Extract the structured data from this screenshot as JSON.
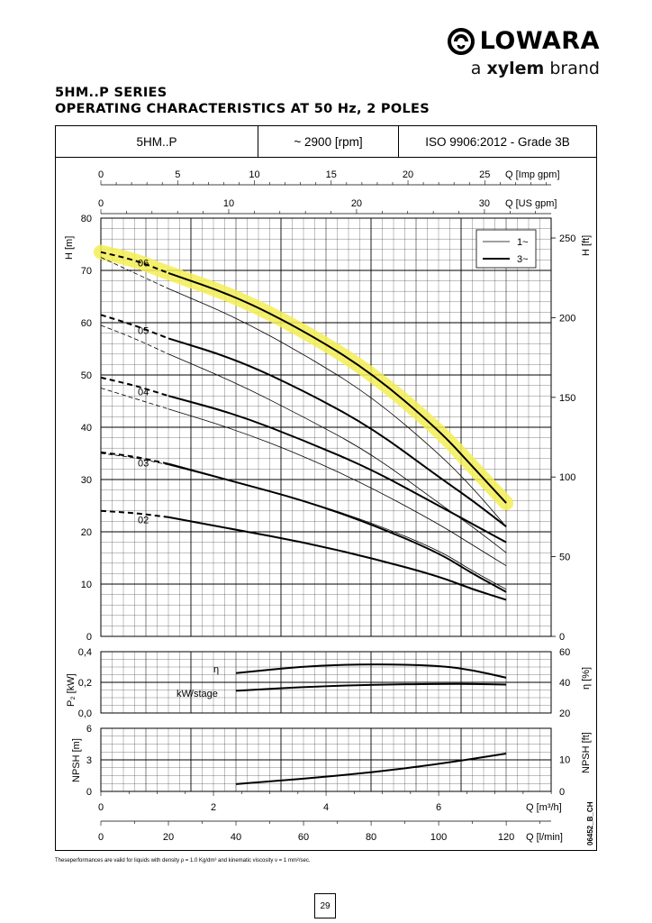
{
  "brand": {
    "name": "LOWARA",
    "tag_prefix": "a ",
    "tag_bold": "xylem",
    "tag_suffix": " brand",
    "logo_icon": "lowara-spiral-icon"
  },
  "title": {
    "line1": "5HM..P SERIES",
    "line2": "OPERATING CHARACTERISTICS AT 50 Hz, 2 POLES"
  },
  "header": {
    "model": "5HM..P",
    "speed": "~ 2900 [rpm]",
    "standard": "ISO 9906:2012 - Grade 3B"
  },
  "footnote": "Theseperformances are valid for liquids with  density ρ =  1.0 Kg/dm³  and kinematic viscosity ν =  1 mm²/sec.",
  "page_number": "29",
  "drawing_code": "06452_B_CH",
  "colors": {
    "highlight": "#f3ef55",
    "line": "#000000"
  },
  "chart_data": {
    "type": "line",
    "x_axes": [
      {
        "label": "Q [Imp gpm]",
        "ticks": [
          0,
          5,
          10,
          15,
          20,
          25
        ],
        "range": [
          0,
          29.3
        ],
        "position": "top"
      },
      {
        "label": "Q [US gpm]",
        "ticks": [
          0,
          10,
          20,
          30
        ],
        "range": [
          0,
          35.2
        ],
        "position": "top"
      },
      {
        "label": "Q [m³/h]",
        "ticks": [
          0,
          2,
          4,
          6
        ],
        "range": [
          0,
          8
        ],
        "position": "bottom"
      },
      {
        "label": "Q [l/min]",
        "ticks": [
          0,
          20,
          40,
          60,
          80,
          100,
          120
        ],
        "range": [
          0,
          133.3
        ],
        "position": "bottom"
      }
    ],
    "x_data_unit": "l/min",
    "head": {
      "ylabel": "H [m]",
      "ylim": [
        0,
        80
      ],
      "yticks": [
        0,
        10,
        20,
        30,
        40,
        50,
        60,
        70,
        80
      ],
      "ylabel_right": "H [ft]",
      "yticks_right": [
        0,
        50,
        100,
        150,
        200,
        250
      ],
      "legend": [
        {
          "name": "1~",
          "style": "thin"
        },
        {
          "name": "3~",
          "style": "thick"
        }
      ],
      "legend_position": "top-right",
      "highlight_curve": "06",
      "curves": [
        {
          "label": "06",
          "style": "thick",
          "x": [
            0,
            10,
            20,
            40,
            60,
            80,
            100,
            110,
            120
          ],
          "y": [
            73.5,
            72,
            69.5,
            65,
            58.5,
            50.5,
            39.5,
            32.5,
            25.5
          ]
        },
        {
          "label": "06",
          "style": "thin",
          "x": [
            0,
            10,
            20,
            40,
            60,
            80,
            100,
            110,
            120
          ],
          "y": [
            72.5,
            69.5,
            66.5,
            61,
            54,
            46,
            35,
            28.5,
            21
          ]
        },
        {
          "label": "05",
          "style": "thick",
          "x": [
            0,
            10,
            20,
            40,
            60,
            80,
            100,
            110,
            120
          ],
          "y": [
            61.5,
            59.5,
            57,
            53,
            47,
            40,
            30.5,
            26,
            21
          ]
        },
        {
          "label": "05",
          "style": "thin",
          "x": [
            0,
            10,
            20,
            40,
            60,
            80,
            100,
            110,
            120
          ],
          "y": [
            59.5,
            57,
            54,
            48.5,
            42,
            35,
            25.5,
            21,
            16
          ]
        },
        {
          "label": "04",
          "style": "thick",
          "x": [
            0,
            10,
            20,
            40,
            60,
            80,
            100,
            110,
            120
          ],
          "y": [
            49.5,
            48,
            46,
            42.5,
            37.5,
            32,
            25,
            21.5,
            18
          ]
        },
        {
          "label": "04",
          "style": "thin",
          "x": [
            0,
            10,
            20,
            40,
            60,
            80,
            100,
            110,
            120
          ],
          "y": [
            47.5,
            45.5,
            43.5,
            39.5,
            34.5,
            28.5,
            21.5,
            17.5,
            13.5
          ]
        },
        {
          "label": "03",
          "style": "thick",
          "x": [
            0,
            10,
            20,
            40,
            60,
            80,
            100,
            110,
            120
          ],
          "y": [
            35.2,
            34.4,
            33,
            29.5,
            26,
            21.5,
            16,
            12,
            8.5
          ]
        },
        {
          "label": "03",
          "style": "thin",
          "x": [
            0,
            10,
            20,
            40,
            60,
            80,
            100,
            110,
            120
          ],
          "y": [
            35,
            34.2,
            32.8,
            29.5,
            26,
            21.8,
            16.5,
            12.5,
            9
          ]
        },
        {
          "label": "02",
          "style": "thick",
          "x": [
            0,
            10,
            20,
            40,
            60,
            80,
            100,
            110,
            120
          ],
          "y": [
            24,
            23.6,
            22.8,
            20.4,
            18,
            15,
            11.5,
            9,
            7
          ]
        }
      ]
    },
    "power": {
      "ylabel": "P₂ [kW]",
      "ylim": [
        0,
        0.4
      ],
      "yticks": [
        "0,0",
        "0,2",
        "0,4"
      ],
      "ylabel_right": "η [%]",
      "ylim_right": [
        20,
        60
      ],
      "yticks_right": [
        20,
        40,
        60
      ],
      "curves": [
        {
          "label": "η",
          "axis": "right",
          "x": [
            40,
            60,
            80,
            100,
            110,
            120
          ],
          "y": [
            46,
            50.5,
            52,
            51,
            48,
            43
          ]
        },
        {
          "label": "kW/stage",
          "axis": "left",
          "x": [
            40,
            60,
            80,
            100,
            110,
            120
          ],
          "y": [
            0.145,
            0.17,
            0.185,
            0.19,
            0.19,
            0.185
          ]
        }
      ]
    },
    "npsh": {
      "ylabel": "NPSH [m]",
      "ylim": [
        0,
        6
      ],
      "yticks": [
        0,
        3,
        6
      ],
      "ylabel_right": "NPSH [ft]",
      "yticks_right": [
        0,
        10
      ],
      "curves": [
        {
          "label": "NPSH",
          "x": [
            40,
            60,
            80,
            100,
            120
          ],
          "y": [
            0.7,
            1.2,
            1.8,
            2.6,
            3.6
          ]
        }
      ]
    }
  }
}
